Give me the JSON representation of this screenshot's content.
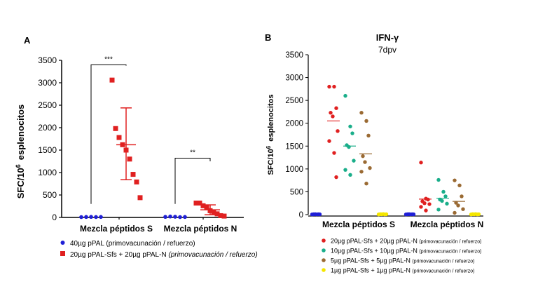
{
  "chart_data": [
    {
      "panel_label": "A",
      "type": "scatter",
      "ylabel_main": "SFC/10",
      "ylabel_sup": "6",
      "ylabel_rest": "esplenocitos",
      "ylim": [
        0,
        3500
      ],
      "yticks": [
        "0",
        "500",
        "1000",
        "1500",
        "2000",
        "2500",
        "3000",
        "3500"
      ],
      "categories": [
        "Mezcla péptidos S",
        "Mezcla péptidos N"
      ],
      "series": [
        {
          "name_main": "40µg pPAL ",
          "name_note": "(primovacunación / refuerzo)",
          "color": "#1f1fd6",
          "marker": "circle",
          "groups": [
            {
              "category": 0,
              "values": [
                8,
                10,
                12,
                9,
                11
              ],
              "mean": 10
            },
            {
              "category": 1,
              "values": [
                12,
                20,
                15,
                8,
                10
              ],
              "mean": 13
            }
          ]
        },
        {
          "name_main": "20µg pPAL-Sfs + 20µg pPAL-N ",
          "name_note": "(primovacunación / refuerzo)",
          "color": "#e02020",
          "marker": "square",
          "groups": [
            {
              "category": 0,
              "values": [
                3060,
                1980,
                1780,
                1620,
                1500,
                1300,
                960,
                790,
                440
              ],
              "mean": 1620,
              "sd_low": 840,
              "sd_high": 2440
            },
            {
              "category": 1,
              "values": [
                320,
                320,
                260,
                220,
                150,
                120,
                80,
                40,
                30
              ],
              "mean": 170,
              "sd_low": 60,
              "sd_high": 280
            }
          ]
        }
      ],
      "significance": [
        {
          "label": "***",
          "category": 0,
          "y_left": 300,
          "y_right": 3380,
          "y_bracket": 3400
        },
        {
          "label": "**",
          "category": 1,
          "y_left": 300,
          "y_right": 1250,
          "y_bracket": 1320
        }
      ]
    },
    {
      "panel_label": "B",
      "type": "scatter",
      "title": "IFN-γ",
      "subtitle": "7dpv",
      "ylabel_main": "SFC/10",
      "ylabel_sup": "6",
      "ylabel_rest": "esplenocitos",
      "ylim": [
        0,
        3500
      ],
      "yticks": [
        "0",
        "500",
        "1000",
        "1500",
        "2000",
        "2500",
        "3000",
        "3500"
      ],
      "categories": [
        "Mezcla péptidos S",
        "Mezcla péptidos N"
      ],
      "series": [
        {
          "name_main": "20µg pPAL-Sfs + 20µg pPAL-N ",
          "name_note": "(primovacunación / refuerzo)",
          "color": "#e02020",
          "groups": [
            {
              "category": 0,
              "values": [
                2800,
                2800,
                2330,
                2230,
                2150,
                1830,
                1610,
                1350,
                820
              ],
              "mean": 2050
            },
            {
              "category": 1,
              "values": [
                1140,
                350,
                330,
                290,
                250,
                230,
                170,
                90
              ],
              "mean": 340
            }
          ]
        },
        {
          "name_main": "10µg pPAL-Sfs + 10µg pPAL-N ",
          "name_note": "(primovacunación / refuerzo)",
          "color": "#1aae8a",
          "groups": [
            {
              "category": 0,
              "values": [
                2600,
                1930,
                1780,
                1520,
                1480,
                1180,
                980,
                870
              ],
              "mean": 1500
            },
            {
              "category": 1,
              "values": [
                760,
                500,
                400,
                330,
                300,
                240,
                110
              ],
              "mean": 360
            }
          ]
        },
        {
          "name_main": "5µg pPAL-Sfs + 5µg pPAL-N ",
          "name_note": "(primovacunación / refuerzo)",
          "color": "#9a6a33",
          "groups": [
            {
              "category": 0,
              "values": [
                2230,
                2050,
                1730,
                1280,
                1150,
                1020,
                940,
                680
              ],
              "mean": 1330
            },
            {
              "category": 1,
              "values": [
                750,
                640,
                400,
                260,
                200,
                120,
                40
              ],
              "mean": 290
            }
          ]
        },
        {
          "name_main": "1µg pPAL-Sfs + 1µg pPAL-N ",
          "name_note": "(primovacunación / refuerzo)",
          "color": "#f4e600",
          "groups": [
            {
              "category": 0,
              "values": [
                5,
                10,
                8,
                12,
                6,
                9
              ],
              "mean": 8
            },
            {
              "category": 1,
              "values": [
                5,
                10,
                8,
                12,
                6,
                9
              ],
              "mean": 8
            }
          ]
        },
        {
          "name_main": "",
          "name_note": "",
          "color": "#1f1fd6",
          "groups": [
            {
              "category": 0,
              "values": [
                5,
                8,
                10,
                6,
                9,
                7
              ],
              "mean": 8
            },
            {
              "category": 1,
              "values": [
                5,
                8,
                10,
                6,
                9,
                7
              ],
              "mean": 8
            }
          ]
        }
      ]
    }
  ]
}
